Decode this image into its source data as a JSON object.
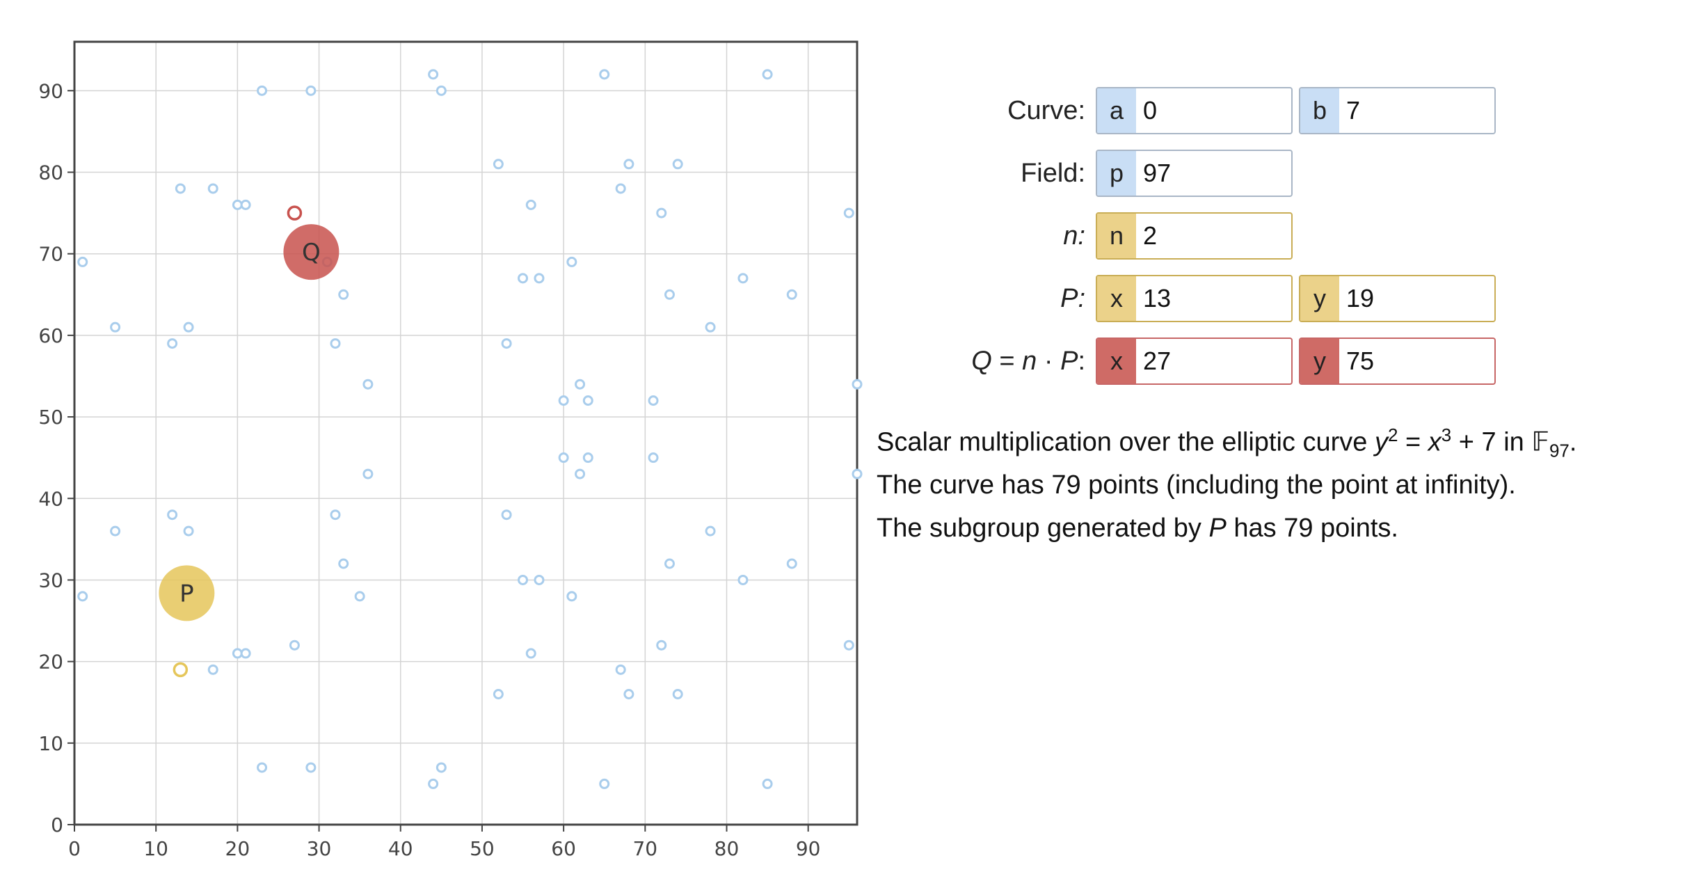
{
  "chart_data": {
    "type": "scatter",
    "xlim": [
      0,
      96
    ],
    "ylim": [
      0,
      96
    ],
    "x_ticks": [
      0,
      10,
      20,
      30,
      40,
      50,
      60,
      70,
      80,
      90
    ],
    "y_ticks": [
      0,
      10,
      20,
      30,
      40,
      50,
      60,
      70,
      80,
      90
    ],
    "grid": true,
    "curve_points": [
      [
        23,
        90
      ],
      [
        29,
        90
      ],
      [
        44,
        92
      ],
      [
        45,
        90
      ],
      [
        65,
        92
      ],
      [
        85,
        92
      ],
      [
        52,
        81
      ],
      [
        68,
        81
      ],
      [
        74,
        81
      ],
      [
        13,
        78
      ],
      [
        17,
        78
      ],
      [
        20,
        76
      ],
      [
        21,
        76
      ],
      [
        56,
        76
      ],
      [
        67,
        78
      ],
      [
        72,
        75
      ],
      [
        95,
        75
      ],
      [
        1,
        69
      ],
      [
        31,
        69
      ],
      [
        55,
        67
      ],
      [
        57,
        67
      ],
      [
        61,
        69
      ],
      [
        33,
        65
      ],
      [
        73,
        65
      ],
      [
        82,
        67
      ],
      [
        88,
        65
      ],
      [
        5,
        61
      ],
      [
        14,
        61
      ],
      [
        12,
        59
      ],
      [
        32,
        59
      ],
      [
        53,
        59
      ],
      [
        78,
        61
      ],
      [
        36,
        54
      ],
      [
        62,
        54
      ],
      [
        60,
        52
      ],
      [
        63,
        52
      ],
      [
        71,
        52
      ],
      [
        96,
        54
      ],
      [
        60,
        45
      ],
      [
        63,
        45
      ],
      [
        71,
        45
      ],
      [
        36,
        43
      ],
      [
        62,
        43
      ],
      [
        96,
        43
      ],
      [
        12,
        38
      ],
      [
        32,
        38
      ],
      [
        53,
        38
      ],
      [
        5,
        36
      ],
      [
        14,
        36
      ],
      [
        78,
        36
      ],
      [
        33,
        32
      ],
      [
        73,
        32
      ],
      [
        88,
        32
      ],
      [
        55,
        30
      ],
      [
        57,
        30
      ],
      [
        82,
        30
      ],
      [
        1,
        28
      ],
      [
        35,
        28
      ],
      [
        61,
        28
      ],
      [
        27,
        22
      ],
      [
        72,
        22
      ],
      [
        95,
        22
      ],
      [
        20,
        21
      ],
      [
        21,
        21
      ],
      [
        56,
        21
      ],
      [
        13,
        19
      ],
      [
        17,
        19
      ],
      [
        67,
        19
      ],
      [
        52,
        16
      ],
      [
        68,
        16
      ],
      [
        74,
        16
      ],
      [
        23,
        7
      ],
      [
        29,
        7
      ],
      [
        45,
        7
      ],
      [
        44,
        5
      ],
      [
        65,
        5
      ],
      [
        85,
        5
      ]
    ],
    "P": {
      "label": "P",
      "x": 13,
      "y": 19,
      "color": "#e5c65a"
    },
    "Q": {
      "label": "Q",
      "x": 27,
      "y": 75,
      "color": "#c8524e"
    },
    "point_color": "#a9cdec"
  },
  "controls": {
    "curve_label": "Curve:",
    "field_label": "Field:",
    "n_label": "n:",
    "p_label": "P:",
    "q_label_left": "Q",
    "q_label_mid": " = ",
    "q_label_n": "n",
    "q_label_dot": " · ",
    "q_label_p": "P",
    "q_label_end": ":",
    "a": {
      "tag": "a",
      "value": "0"
    },
    "b": {
      "tag": "b",
      "value": "7"
    },
    "p": {
      "tag": "p",
      "value": "97"
    },
    "n": {
      "tag": "n",
      "value": "2"
    },
    "Px": {
      "tag": "x",
      "value": "13"
    },
    "Py": {
      "tag": "y",
      "value": "19"
    },
    "Qx": {
      "tag": "x",
      "value": "27"
    },
    "Qy": {
      "tag": "y",
      "value": "75"
    }
  },
  "description": {
    "line1_start": "Scalar multiplication over the elliptic curve ",
    "line1_y": "y",
    "line1_exp2": "2",
    "line1_eq": " = ",
    "line1_x": "x",
    "line1_exp3": "3",
    "line1_rest": " + 7 in ",
    "line1_field": "𝔽",
    "line1_sub": "97",
    "line1_end": ".",
    "line2": "The curve has 79 points (including the point at infinity).",
    "line3_start": "The subgroup generated by ",
    "line3_P": "P",
    "line3_end": " has 79 points."
  }
}
